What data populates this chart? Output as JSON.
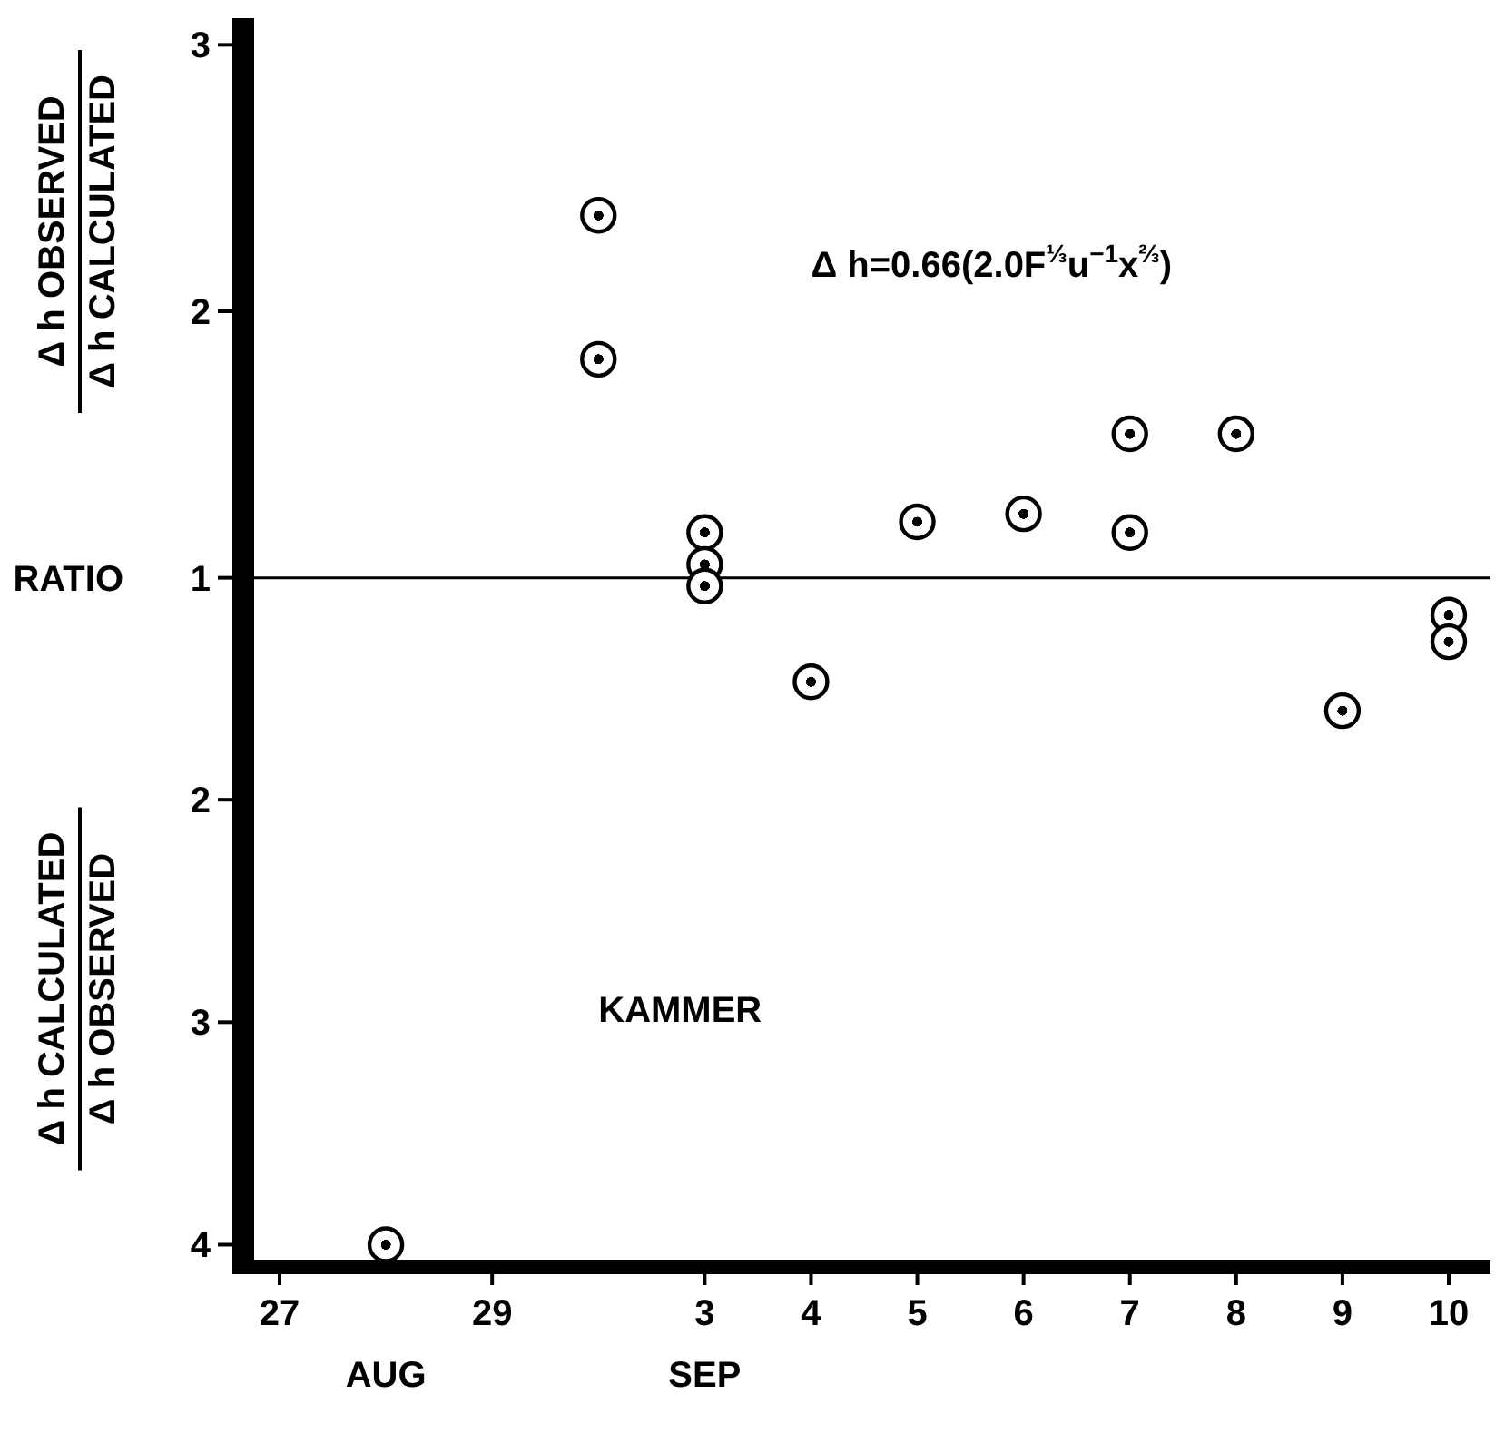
{
  "chart_data": [
    {
      "type": "scatter",
      "marker": "circle",
      "tick_labels": "y",
      "categories": [
        "27",
        null,
        "29",
        null,
        "3",
        "4",
        "5",
        "6",
        "7",
        "8",
        "9",
        "10"
      ],
      "series": [
        {
          "color": "#000000",
          "values": [
            null,
            null,
            null,
            2.36,
            1.17,
            null,
            1.21,
            1.24,
            1.54,
            1.54,
            null,
            null
          ]
        },
        {
          "color": "#000000",
          "values": [
            null,
            null,
            null,
            1.82,
            1.05,
            null,
            null,
            null,
            1.17,
            null,
            null,
            null
          ]
        }
      ],
      "ylim": [
        0.9,
        3.1
      ],
      "yticks": [
        1,
        2,
        3
      ],
      "ref_lines": [
        {
          "axis": "y",
          "value": 1
        }
      ],
      "annotations": [
        "Δ h OBSERVED",
        "Δ h CALCULATED",
        "RATIO",
        "Δ h=0.66(2.0F$^{⅓}$u$^{−1}$x$^{⅔}$)"
      ]
    },
    {
      "type": "scatter",
      "marker": "circle",
      "categories": [
        "27",
        null,
        "29",
        null,
        "3",
        "4",
        "5",
        "6",
        "7",
        "8",
        "9",
        "10"
      ],
      "series": [
        {
          "color": "#000000",
          "values": [
            null,
            4.0,
            null,
            null,
            1.04,
            1.47,
            null,
            null,
            null,
            null,
            1.6,
            1.17
          ]
        },
        {
          "color": "#000000",
          "values": [
            null,
            null,
            null,
            null,
            null,
            null,
            null,
            null,
            null,
            null,
            null,
            1.29
          ]
        }
      ],
      "ylim": [
        4.1,
        1
      ],
      "yticks": [
        2,
        3,
        4
      ],
      "annotations": [
        "Δ h CALCULATED",
        "Δ h OBSERVED",
        "AUG",
        "SEP",
        "KAMMER"
      ]
    }
  ]
}
